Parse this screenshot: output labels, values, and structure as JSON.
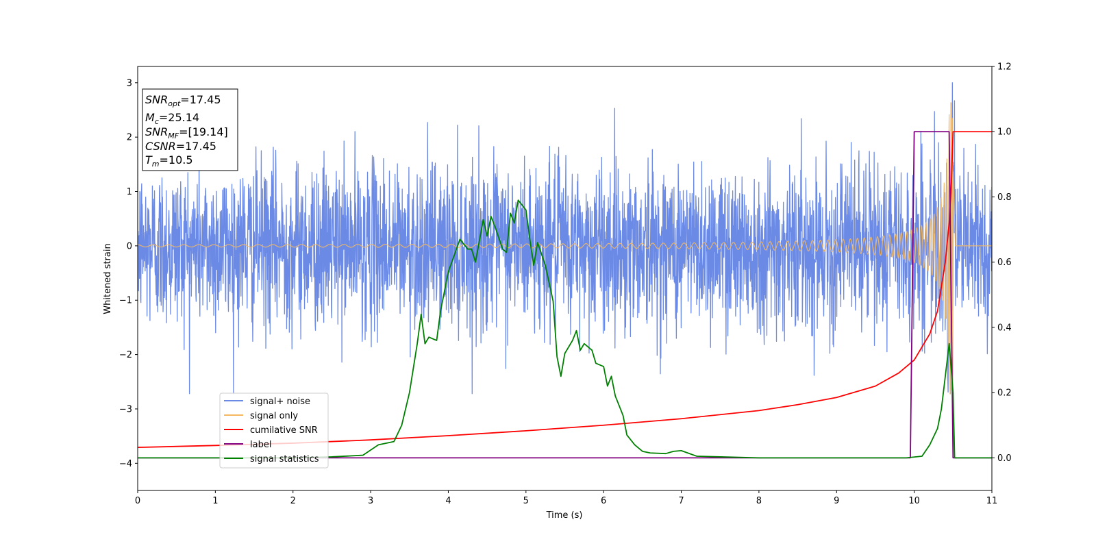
{
  "chart_data": {
    "type": "line",
    "xlabel": "Time (s)",
    "ylabel": "Whitened strain",
    "xlim": [
      0,
      11
    ],
    "ylim": [
      -4.5,
      3.3
    ],
    "ylim_right": [
      -0.1,
      1.2
    ],
    "x_ticks": [
      "0",
      "1",
      "2",
      "3",
      "4",
      "5",
      "6",
      "7",
      "8",
      "9",
      "10",
      "11"
    ],
    "y_ticks_left": [
      "3",
      "2",
      "1",
      "0",
      "−1",
      "−2",
      "−3",
      "−4"
    ],
    "y_ticks_right": [
      "1.2",
      "1.0",
      "0.8",
      "0.6",
      "0.4",
      "0.2",
      "0.0"
    ],
    "info_box": {
      "snr_opt": {
        "main": "SNR",
        "sub": "opt",
        "value": "=17.45"
      },
      "mc": {
        "main": "M",
        "sub": "c",
        "value": "=25.14"
      },
      "snr_mf": {
        "main": "SNR",
        "sub": "MF",
        "value": "=[19.14]"
      },
      "csnr": {
        "main": "CSNR",
        "sub": "",
        "value": "=17.45"
      },
      "tm": {
        "main": "T",
        "sub": "m",
        "value": "=10.5"
      }
    },
    "legend_position": "lower-left",
    "series": [
      {
        "name": "signal+ noise",
        "axis": "left",
        "color": "#6b8ae6",
        "noise_sigma": 0.75,
        "noise_min": -2.72,
        "noise_max": 3.0
      },
      {
        "name": "signal only",
        "axis": "left",
        "color": "#f5b860",
        "chirp_start_freq_hz": 5,
        "chirp_end_time": 10.5,
        "peak_amplitude": 2.75
      },
      {
        "name": "cumilative SNR",
        "axis": "right",
        "color": "#ff0000",
        "points": [
          [
            0,
            0.032
          ],
          [
            1,
            0.038
          ],
          [
            2,
            0.045
          ],
          [
            3,
            0.055
          ],
          [
            4,
            0.068
          ],
          [
            5,
            0.083
          ],
          [
            6,
            0.1
          ],
          [
            7,
            0.12
          ],
          [
            8,
            0.145
          ],
          [
            8.5,
            0.163
          ],
          [
            9,
            0.185
          ],
          [
            9.5,
            0.22
          ],
          [
            9.8,
            0.26
          ],
          [
            10.0,
            0.3
          ],
          [
            10.2,
            0.38
          ],
          [
            10.3,
            0.45
          ],
          [
            10.4,
            0.6
          ],
          [
            10.45,
            0.72
          ],
          [
            10.48,
            0.85
          ],
          [
            10.5,
            1.0
          ],
          [
            11,
            1.0
          ]
        ]
      },
      {
        "name": "label",
        "axis": "right",
        "color": "#800080",
        "points": [
          [
            0,
            0.0
          ],
          [
            9.95,
            0.0
          ],
          [
            10.0,
            1.0
          ],
          [
            10.45,
            1.0
          ],
          [
            10.5,
            0.0
          ],
          [
            11,
            0.0
          ]
        ]
      },
      {
        "name": "signal statistics",
        "axis": "right",
        "color": "#008000",
        "points": [
          [
            0,
            0.0
          ],
          [
            2.0,
            0.0
          ],
          [
            2.5,
            0.003
          ],
          [
            2.9,
            0.008
          ],
          [
            3.1,
            0.04
          ],
          [
            3.3,
            0.05
          ],
          [
            3.4,
            0.1
          ],
          [
            3.5,
            0.2
          ],
          [
            3.6,
            0.35
          ],
          [
            3.65,
            0.44
          ],
          [
            3.7,
            0.35
          ],
          [
            3.75,
            0.37
          ],
          [
            3.85,
            0.36
          ],
          [
            3.9,
            0.45
          ],
          [
            4.0,
            0.57
          ],
          [
            4.15,
            0.67
          ],
          [
            4.25,
            0.64
          ],
          [
            4.3,
            0.64
          ],
          [
            4.35,
            0.6
          ],
          [
            4.45,
            0.73
          ],
          [
            4.5,
            0.68
          ],
          [
            4.55,
            0.74
          ],
          [
            4.6,
            0.71
          ],
          [
            4.7,
            0.64
          ],
          [
            4.75,
            0.63
          ],
          [
            4.8,
            0.75
          ],
          [
            4.85,
            0.72
          ],
          [
            4.9,
            0.79
          ],
          [
            5.0,
            0.76
          ],
          [
            5.05,
            0.67
          ],
          [
            5.1,
            0.59
          ],
          [
            5.15,
            0.66
          ],
          [
            5.25,
            0.59
          ],
          [
            5.35,
            0.48
          ],
          [
            5.4,
            0.31
          ],
          [
            5.45,
            0.25
          ],
          [
            5.5,
            0.32
          ],
          [
            5.55,
            0.34
          ],
          [
            5.6,
            0.36
          ],
          [
            5.65,
            0.39
          ],
          [
            5.7,
            0.33
          ],
          [
            5.75,
            0.35
          ],
          [
            5.85,
            0.33
          ],
          [
            5.9,
            0.29
          ],
          [
            6.0,
            0.28
          ],
          [
            6.05,
            0.22
          ],
          [
            6.1,
            0.25
          ],
          [
            6.15,
            0.19
          ],
          [
            6.25,
            0.13
          ],
          [
            6.3,
            0.07
          ],
          [
            6.4,
            0.04
          ],
          [
            6.5,
            0.02
          ],
          [
            6.6,
            0.015
          ],
          [
            6.8,
            0.013
          ],
          [
            6.9,
            0.02
          ],
          [
            7.0,
            0.022
          ],
          [
            7.2,
            0.005
          ],
          [
            7.5,
            0.003
          ],
          [
            8.0,
            0.0
          ],
          [
            9.0,
            0.0
          ],
          [
            9.9,
            0.0
          ],
          [
            10.1,
            0.005
          ],
          [
            10.2,
            0.04
          ],
          [
            10.3,
            0.09
          ],
          [
            10.35,
            0.15
          ],
          [
            10.4,
            0.25
          ],
          [
            10.45,
            0.35
          ],
          [
            10.5,
            0.2
          ],
          [
            10.52,
            0.0
          ],
          [
            11,
            0.0
          ]
        ]
      }
    ]
  }
}
